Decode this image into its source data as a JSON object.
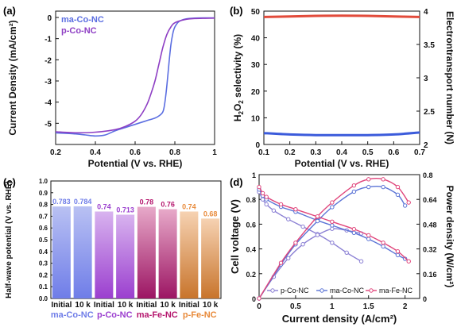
{
  "chart_data": [
    {
      "panel": "(a)",
      "type": "line",
      "xlabel": "Potential (V vs. RHE)",
      "ylabel": "Current Density (mA/cm²)",
      "xlim": [
        0.2,
        1.0
      ],
      "ylim": [
        -6,
        0.3
      ],
      "xticks": [
        "0.2",
        "0.4",
        "0.6",
        "0.8",
        "1"
      ],
      "yticks": [
        "0",
        "-1",
        "-2",
        "-3",
        "-4",
        "-5"
      ],
      "legend_position": "top-left",
      "colors": {
        "ma-Co-NC": "#5b6ee1",
        "p-Co-NC": "#8e3fc4"
      },
      "series": [
        {
          "name": "ma-Co-NC",
          "x": [
            0.2,
            0.3,
            0.35,
            0.4,
            0.45,
            0.5,
            0.55,
            0.6,
            0.65,
            0.7,
            0.72,
            0.74,
            0.75,
            0.76,
            0.77,
            0.78,
            0.79,
            0.8,
            0.82,
            0.85,
            0.9,
            1.0
          ],
          "y": [
            -5.45,
            -5.5,
            -5.55,
            -5.6,
            -5.55,
            -5.35,
            -5.2,
            -5.05,
            -4.9,
            -4.75,
            -4.65,
            -4.45,
            -4.0,
            -3.2,
            -2.2,
            -1.3,
            -0.75,
            -0.45,
            -0.2,
            -0.08,
            -0.03,
            -0.02
          ]
        },
        {
          "name": "p-Co-NC",
          "x": [
            0.2,
            0.3,
            0.4,
            0.5,
            0.55,
            0.6,
            0.63,
            0.66,
            0.68,
            0.7,
            0.72,
            0.74,
            0.76,
            0.78,
            0.8,
            0.85,
            0.9,
            1.0
          ],
          "y": [
            -5.4,
            -5.45,
            -5.42,
            -5.3,
            -5.15,
            -4.9,
            -4.6,
            -4.1,
            -3.6,
            -3.0,
            -2.2,
            -1.4,
            -0.8,
            -0.45,
            -0.25,
            -0.1,
            -0.05,
            -0.03
          ]
        }
      ]
    },
    {
      "panel": "(b)",
      "type": "line",
      "xlabel": "Potential (V vs. RHE)",
      "ylabel": "H2O2 selectivity (%)",
      "ylabel_parts": [
        "H",
        "2",
        "O",
        "2",
        " selectivity (%)"
      ],
      "y2label": "Electrontransport number (N)",
      "xlim": [
        0.1,
        0.7
      ],
      "ylim": [
        0,
        50
      ],
      "y2lim": [
        2,
        4
      ],
      "xticks": [
        "0.1",
        "0.2",
        "0.3",
        "0.4",
        "0.5",
        "0.6",
        "0.7"
      ],
      "yticks": [
        "0",
        "10",
        "20",
        "30",
        "40",
        "50"
      ],
      "y2ticks": [
        "2",
        "2.5",
        "3",
        "3.5",
        "4"
      ],
      "colors": {
        "selectivity": "#e24b3b",
        "electron_number": "#3b5bdb"
      },
      "series": [
        {
          "axis": "left",
          "x": [
            0.1,
            0.2,
            0.3,
            0.4,
            0.5,
            0.6,
            0.7
          ],
          "y": [
            47.8,
            48.0,
            48.2,
            48.3,
            48.2,
            48.0,
            47.8
          ]
        },
        {
          "axis": "right",
          "x": [
            0.1,
            0.2,
            0.3,
            0.4,
            0.5,
            0.6,
            0.7
          ],
          "y": [
            2.17,
            2.15,
            2.14,
            2.14,
            2.14,
            2.15,
            2.18
          ]
        }
      ]
    },
    {
      "panel": "(c)",
      "type": "bar",
      "ylabel": "Half-wave potential (V vs. RHE)",
      "ylim": [
        0,
        1.0
      ],
      "yticks": [
        "0.0",
        "0.1",
        "0.2",
        "0.3",
        "0.4",
        "0.5",
        "0.6",
        "0.7",
        "0.8",
        "0.9",
        "1.0"
      ],
      "categories": [
        "Initial",
        "10 k",
        "Initial",
        "10 k",
        "Initial",
        "10 k",
        "Initial",
        "10 k"
      ],
      "values": [
        0.783,
        0.784,
        0.74,
        0.713,
        0.78,
        0.76,
        0.74,
        0.68
      ],
      "value_labels": [
        "0.783",
        "0.784",
        "0.74",
        "0.713",
        "0.78",
        "0.76",
        "0.74",
        "0.68"
      ],
      "groups": [
        {
          "name": "ma-Co-NC",
          "color": "#6f7de8"
        },
        {
          "name": "p-Co-NC",
          "color": "#9b3fcf"
        },
        {
          "name": "ma-Fe-NC",
          "color": "#b5176e"
        },
        {
          "name": "p-Fe-NC",
          "color": "#e88a3a"
        }
      ]
    },
    {
      "panel": "(d)",
      "type": "line",
      "xlabel": "Current density (A/cm²)",
      "ylabel": "Cell voltage (V)",
      "y2label": "Power density (W/cm²)",
      "xlim": [
        0,
        2.2
      ],
      "ylim": [
        0,
        1.0
      ],
      "y2lim": [
        0,
        0.8
      ],
      "xticks": [
        "0",
        "0.5",
        "1",
        "1.5",
        "2"
      ],
      "yticks": [
        "0",
        "0.2",
        "0.4",
        "0.6",
        "0.8",
        "1"
      ],
      "y2ticks": [
        "0",
        "0.16",
        "0.32",
        "0.48",
        "0.64",
        "0.8"
      ],
      "legend_position": "bottom",
      "series": [
        {
          "name": "p-Co-NC",
          "color": "#8a7fd4",
          "voltage": {
            "x": [
              0,
              0.05,
              0.1,
              0.2,
              0.4,
              0.6,
              0.8,
              1.0,
              1.2,
              1.4
            ],
            "y": [
              0.86,
              0.8,
              0.76,
              0.71,
              0.64,
              0.58,
              0.52,
              0.45,
              0.37,
              0.3
            ]
          },
          "power": {
            "x": [
              0,
              0.2,
              0.4,
              0.6,
              0.8,
              1.0,
              1.2,
              1.4
            ],
            "y": [
              0,
              0.14,
              0.26,
              0.35,
              0.41,
              0.45,
              0.44,
              0.42
            ]
          }
        },
        {
          "name": "ma-Co-NC",
          "color": "#5b74d6",
          "voltage": {
            "x": [
              0,
              0.05,
              0.1,
              0.3,
              0.5,
              0.8,
              1.0,
              1.3,
              1.5,
              1.7,
              1.9,
              2.0
            ],
            "y": [
              0.88,
              0.83,
              0.8,
              0.74,
              0.7,
              0.63,
              0.59,
              0.53,
              0.48,
              0.42,
              0.35,
              0.32
            ]
          },
          "power": {
            "x": [
              0,
              0.3,
              0.5,
              0.8,
              1.0,
              1.3,
              1.5,
              1.7,
              1.9,
              2.0
            ],
            "y": [
              0,
              0.22,
              0.35,
              0.5,
              0.59,
              0.69,
              0.72,
              0.72,
              0.67,
              0.6
            ]
          }
        },
        {
          "name": "ma-Fe-NC",
          "color": "#e0457b",
          "voltage": {
            "x": [
              0,
              0.05,
              0.1,
              0.3,
              0.5,
              0.8,
              1.0,
              1.3,
              1.5,
              1.7,
              1.9,
              2.05
            ],
            "y": [
              0.9,
              0.85,
              0.82,
              0.76,
              0.72,
              0.66,
              0.62,
              0.56,
              0.51,
              0.45,
              0.38,
              0.3
            ]
          },
          "power": {
            "x": [
              0,
              0.3,
              0.5,
              0.8,
              1.0,
              1.3,
              1.5,
              1.7,
              1.9,
              2.05
            ],
            "y": [
              0,
              0.23,
              0.36,
              0.53,
              0.62,
              0.73,
              0.77,
              0.77,
              0.72,
              0.62
            ]
          }
        }
      ]
    }
  ]
}
